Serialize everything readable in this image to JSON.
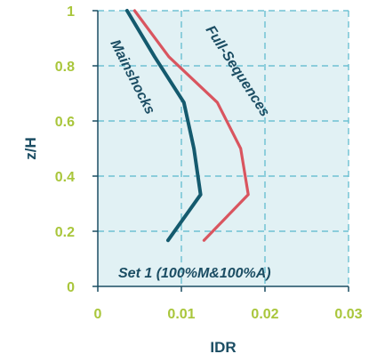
{
  "chart_data": {
    "type": "line",
    "xlabel": "IDR",
    "ylabel": "z/H",
    "xlim": [
      0,
      0.03
    ],
    "ylim": [
      0,
      1
    ],
    "xticks": [
      0,
      0.01,
      0.02,
      0.03
    ],
    "xtick_labels": [
      "0",
      "0.01",
      "0.02",
      "0.03"
    ],
    "yticks": [
      0,
      0.2,
      0.4,
      0.6,
      0.8,
      1
    ],
    "ytick_labels": [
      "0",
      "0.2",
      "0.4",
      "0.6",
      "0.8",
      "1"
    ],
    "grid": true,
    "annotation": "Set 1 (100%M&100%A)",
    "series": [
      {
        "name": "Mainshocks",
        "color": "#145a6e",
        "points": [
          [
            0.0084,
            0.167
          ],
          [
            0.0123,
            0.333
          ],
          [
            0.0115,
            0.5
          ],
          [
            0.0103,
            0.667
          ],
          [
            0.0068,
            0.833
          ],
          [
            0.0035,
            1.0
          ]
        ]
      },
      {
        "name": "Full-Sequences",
        "color": "#d9555f",
        "points": [
          [
            0.0127,
            0.167
          ],
          [
            0.018,
            0.333
          ],
          [
            0.0171,
            0.5
          ],
          [
            0.0143,
            0.667
          ],
          [
            0.0085,
            0.833
          ],
          [
            0.0044,
            1.0
          ]
        ]
      }
    ]
  }
}
